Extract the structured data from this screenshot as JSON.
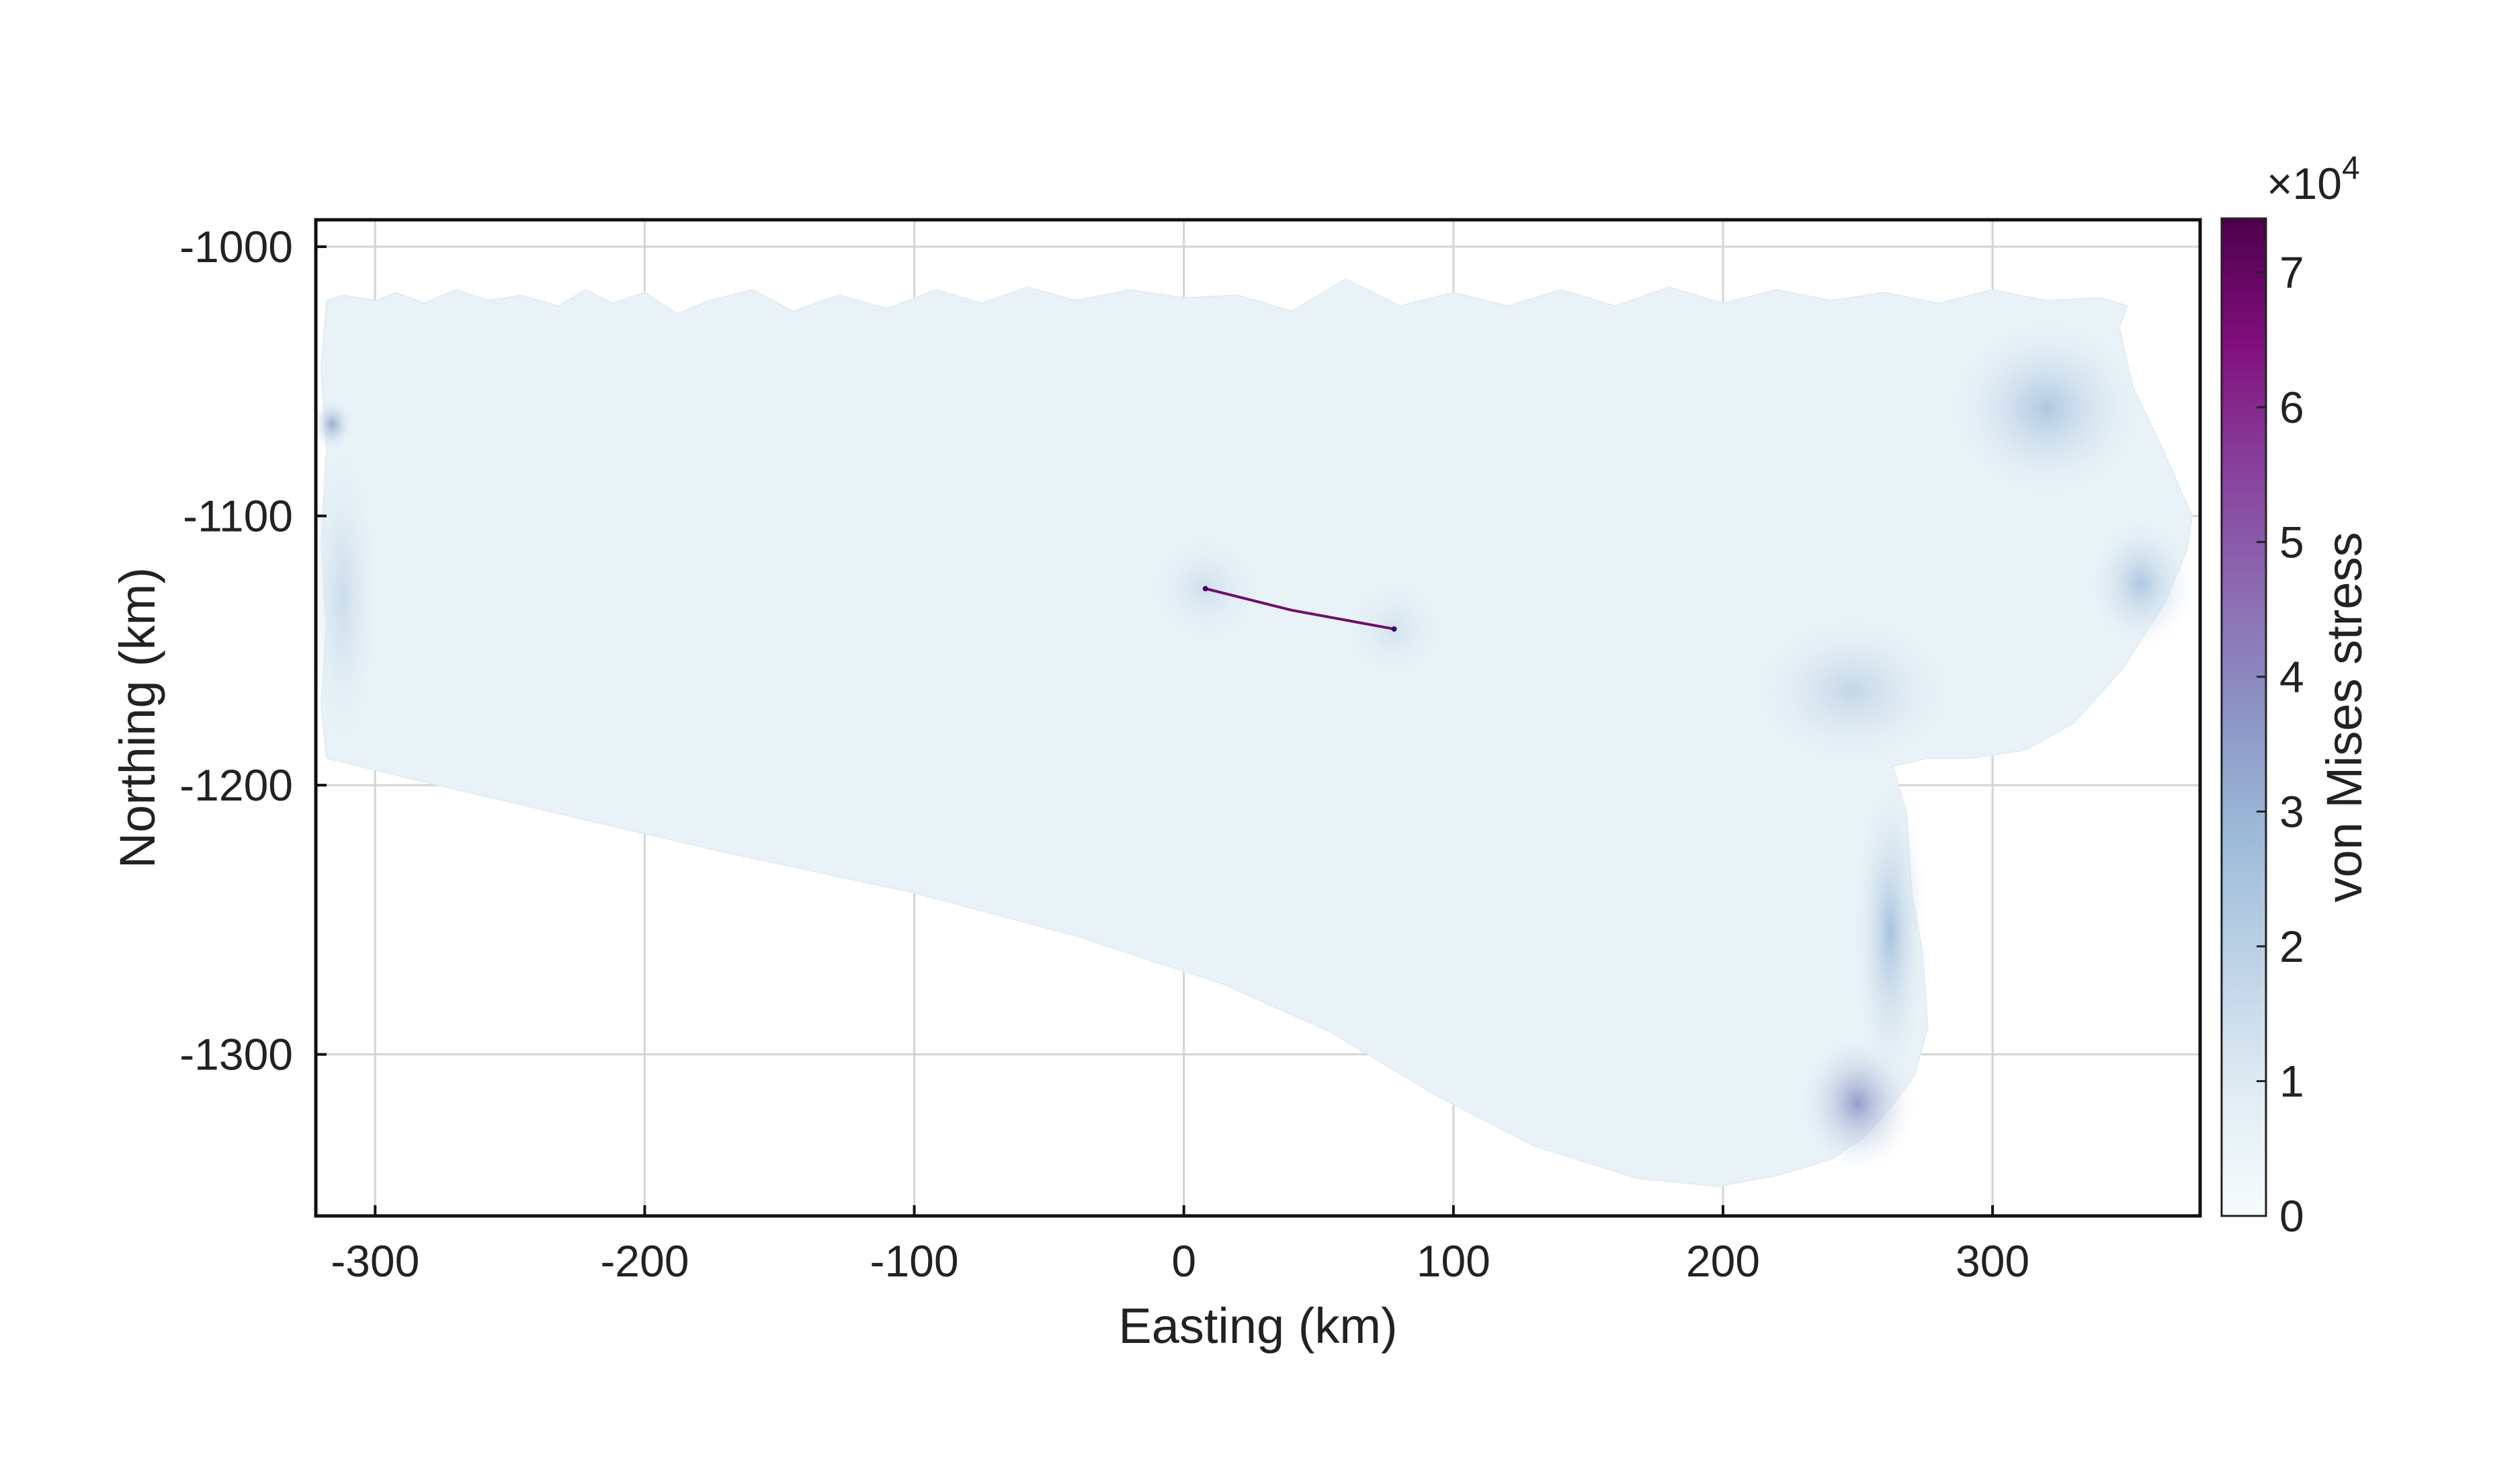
{
  "chart_data": {
    "type": "heatmap",
    "title": "",
    "xlabel": "Easting (km)",
    "ylabel": "Northing (km)",
    "xlim": [
      -322,
      377
    ],
    "ylim": [
      -1360,
      -990
    ],
    "xticks": [
      -300,
      -200,
      -100,
      0,
      100,
      200,
      300
    ],
    "yticks": [
      -1000,
      -1100,
      -1200,
      -1300
    ],
    "grid": true,
    "colorbar": {
      "label": "von Mises stress",
      "multiplier": "×10",
      "exponent": "4",
      "range": [
        0,
        7.4
      ],
      "ticks": [
        0,
        1,
        2,
        3,
        4,
        5,
        6,
        7
      ],
      "colors": [
        "#f7fcfd",
        "#e0ecf4",
        "#bfd3e6",
        "#9ebcda",
        "#8c96c6",
        "#8c6bb1",
        "#88419d",
        "#810f7c",
        "#4d004b"
      ]
    },
    "domain_outline": [
      [
        -318,
        -1020
      ],
      [
        -312,
        -1018
      ],
      [
        -300,
        -1020
      ],
      [
        -292,
        -1017
      ],
      [
        -282,
        -1021
      ],
      [
        -270,
        -1016
      ],
      [
        -258,
        -1020
      ],
      [
        -246,
        -1018
      ],
      [
        -232,
        -1022
      ],
      [
        -222,
        -1016
      ],
      [
        -212,
        -1021
      ],
      [
        -200,
        -1017
      ],
      [
        -188,
        -1025
      ],
      [
        -176,
        -1020
      ],
      [
        -160,
        -1016
      ],
      [
        -145,
        -1024
      ],
      [
        -128,
        -1018
      ],
      [
        -110,
        -1023
      ],
      [
        -92,
        -1016
      ],
      [
        -75,
        -1021
      ],
      [
        -58,
        -1015
      ],
      [
        -40,
        -1020
      ],
      [
        -20,
        -1016
      ],
      [
        0,
        -1019
      ],
      [
        20,
        -1018
      ],
      [
        40,
        -1024
      ],
      [
        60,
        -1012
      ],
      [
        80,
        -1022
      ],
      [
        100,
        -1017
      ],
      [
        120,
        -1022
      ],
      [
        140,
        -1016
      ],
      [
        160,
        -1022
      ],
      [
        180,
        -1015
      ],
      [
        200,
        -1021
      ],
      [
        220,
        -1016
      ],
      [
        240,
        -1020
      ],
      [
        260,
        -1017
      ],
      [
        280,
        -1021
      ],
      [
        300,
        -1016
      ],
      [
        320,
        -1020
      ],
      [
        340,
        -1019
      ],
      [
        350,
        -1022
      ],
      [
        347,
        -1030
      ],
      [
        352,
        -1052
      ],
      [
        363,
        -1075
      ],
      [
        374,
        -1100
      ],
      [
        372,
        -1113
      ],
      [
        364,
        -1132
      ],
      [
        348,
        -1157
      ],
      [
        330,
        -1177
      ],
      [
        312,
        -1187
      ],
      [
        292,
        -1190
      ],
      [
        276,
        -1190
      ],
      [
        263,
        -1193
      ],
      [
        268,
        -1210
      ],
      [
        270,
        -1240
      ],
      [
        274,
        -1262
      ],
      [
        276,
        -1290
      ],
      [
        271,
        -1308
      ],
      [
        262,
        -1320
      ],
      [
        252,
        -1331
      ],
      [
        240,
        -1339
      ],
      [
        220,
        -1345
      ],
      [
        198,
        -1349
      ],
      [
        168,
        -1346
      ],
      [
        130,
        -1334
      ],
      [
        95,
        -1316
      ],
      [
        55,
        -1292
      ],
      [
        15,
        -1274
      ],
      [
        -40,
        -1256
      ],
      [
        -100,
        -1240
      ],
      [
        -170,
        -1225
      ],
      [
        -230,
        -1211
      ],
      [
        -285,
        -1198
      ],
      [
        -318,
        -1190
      ],
      [
        -320,
        -1170
      ],
      [
        -318,
        -1140
      ],
      [
        -320,
        -1110
      ],
      [
        -318,
        -1075
      ],
      [
        -320,
        -1045
      ],
      [
        -318,
        -1020
      ]
    ],
    "stress_hotspots": [
      {
        "x": 250,
        "y": -1318,
        "value": 3.6,
        "rx": 22,
        "ry": 26
      },
      {
        "x": 262,
        "y": -1255,
        "value": 2.6,
        "rx": 14,
        "ry": 60
      },
      {
        "x": 320,
        "y": -1060,
        "value": 2.4,
        "rx": 38,
        "ry": 35
      },
      {
        "x": 355,
        "y": -1125,
        "value": 2.4,
        "rx": 20,
        "ry": 25
      },
      {
        "x": 248,
        "y": -1165,
        "value": 1.8,
        "rx": 40,
        "ry": 30
      },
      {
        "x": -312,
        "y": -1130,
        "value": 1.6,
        "rx": 14,
        "ry": 60
      },
      {
        "x": -316,
        "y": -1066,
        "value": 3.2,
        "rx": 8,
        "ry": 10
      },
      {
        "x": 8,
        "y": -1127,
        "value": 1.4,
        "rx": 22,
        "ry": 22
      },
      {
        "x": 78,
        "y": -1142,
        "value": 1.3,
        "rx": 20,
        "ry": 20
      }
    ],
    "rift": [
      [
        8,
        -1127
      ],
      [
        40,
        -1135
      ],
      [
        78,
        -1142
      ]
    ]
  }
}
